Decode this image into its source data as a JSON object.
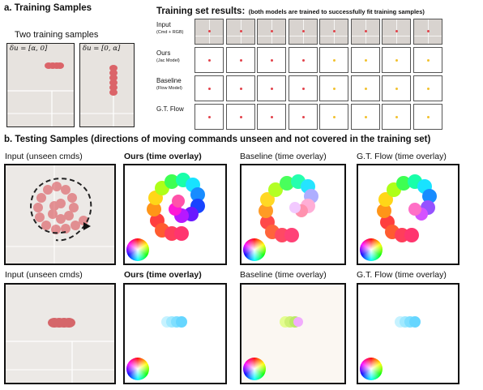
{
  "section_a": {
    "title": "a.  Training Samples",
    "subtitle": "Two training samples",
    "samples": [
      {
        "equation": "δu = [α, 0]"
      },
      {
        "equation": "δu = [0, α]"
      }
    ]
  },
  "results": {
    "title_bold": "Training set results:",
    "title_note": "(both models are trained to successfully fit training samples)",
    "rows": [
      {
        "label": "Input",
        "sublabel": "(Cmd + RGB)"
      },
      {
        "label": "Ours",
        "sublabel": "(Jac Model)"
      },
      {
        "label": "Baseline",
        "sublabel": "(Flow Model)"
      },
      {
        "label": "G.T. Flow",
        "sublabel": ""
      }
    ],
    "dot_colors": [
      "#e2434b",
      "#e2434b",
      "#e2434b",
      "#e2434b",
      "#f2c12e",
      "#f2c12e",
      "#f2c12e",
      "#f2c12e"
    ]
  },
  "section_b": {
    "title": "b.  Testing Samples (directions of moving commands unseen and not covered in the training set)",
    "row1_labels": [
      "Input (unseen cmds)",
      "Ours (time overlay)",
      "Baseline (time overlay)",
      "G.T. Flow (time overlay)"
    ],
    "row2_labels": [
      "Input (unseen cmds)",
      "Ours (time overlay)",
      "Baseline (time overlay)",
      "G.T. Flow (time overlay)"
    ]
  },
  "colors": {
    "accent_red": "#e2434b",
    "accent_yellow": "#f2c12e",
    "photo_bg": "#d8d3cf"
  },
  "icons": [
    "color-wheel-icon"
  ]
}
